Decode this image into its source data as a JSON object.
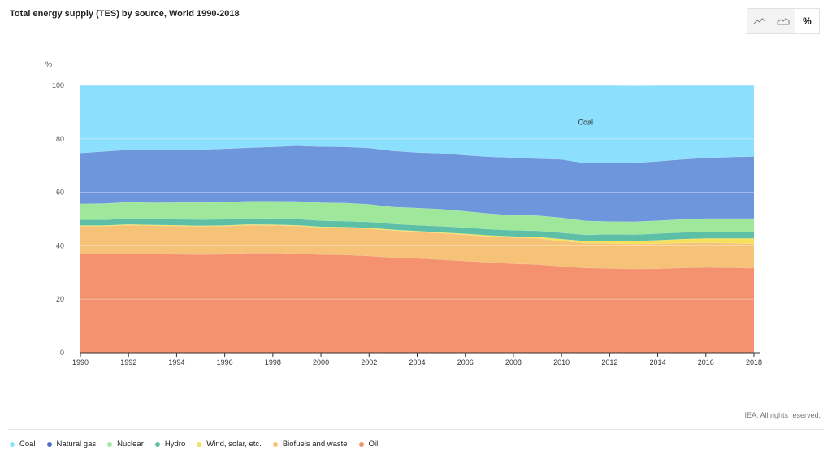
{
  "chart_data": {
    "type": "area",
    "title": "Total energy supply (TES) by source, World 1990-2018",
    "ylabel": "%",
    "xlabel": "",
    "ylim": [
      0,
      100
    ],
    "yticks": [
      0,
      20,
      40,
      60,
      80,
      100
    ],
    "xticks": [
      1990,
      1992,
      1994,
      1996,
      1998,
      2000,
      2002,
      2004,
      2006,
      2008,
      2010,
      2012,
      2014,
      2016,
      2018
    ],
    "x": [
      1990,
      1991,
      1992,
      1993,
      1994,
      1995,
      1996,
      1997,
      1998,
      1999,
      2000,
      2001,
      2002,
      2003,
      2004,
      2005,
      2006,
      2007,
      2008,
      2009,
      2010,
      2011,
      2012,
      2013,
      2014,
      2015,
      2016,
      2017,
      2018
    ],
    "series": [
      {
        "name": "Oil",
        "color": "#f4916f",
        "values": [
          37.0,
          36.9,
          37.1,
          36.9,
          36.8,
          36.7,
          36.8,
          37.3,
          37.3,
          37.1,
          36.7,
          36.6,
          36.2,
          35.6,
          35.3,
          34.8,
          34.3,
          33.8,
          33.3,
          33.0,
          32.3,
          31.7,
          31.5,
          31.3,
          31.4,
          31.7,
          31.9,
          31.8,
          31.6
        ]
      },
      {
        "name": "Biofuels and waste",
        "color": "#f6c278",
        "values": [
          10.3,
          10.4,
          10.6,
          10.6,
          10.6,
          10.5,
          10.5,
          10.4,
          10.3,
          10.3,
          10.1,
          10.1,
          10.2,
          10.1,
          9.9,
          9.9,
          9.8,
          9.7,
          9.8,
          9.8,
          9.5,
          9.3,
          9.4,
          9.4,
          9.4,
          9.4,
          9.3,
          9.2,
          9.2
        ]
      },
      {
        "name": "Wind, solar, etc.",
        "color": "#f5e15c",
        "values": [
          0.3,
          0.3,
          0.3,
          0.3,
          0.3,
          0.3,
          0.3,
          0.3,
          0.3,
          0.3,
          0.3,
          0.3,
          0.3,
          0.3,
          0.3,
          0.3,
          0.4,
          0.4,
          0.4,
          0.5,
          0.7,
          0.8,
          1.0,
          1.1,
          1.3,
          1.4,
          1.6,
          1.8,
          2.0
        ]
      },
      {
        "name": "Hydro",
        "color": "#5ebfa7",
        "values": [
          2.1,
          2.1,
          2.2,
          2.2,
          2.2,
          2.3,
          2.3,
          2.3,
          2.3,
          2.3,
          2.3,
          2.2,
          2.2,
          2.2,
          2.2,
          2.3,
          2.3,
          2.3,
          2.3,
          2.3,
          2.4,
          2.3,
          2.4,
          2.4,
          2.5,
          2.5,
          2.5,
          2.5,
          2.5
        ]
      },
      {
        "name": "Nuclear",
        "color": "#9fe89b",
        "values": [
          6.0,
          6.1,
          6.1,
          6.1,
          6.3,
          6.4,
          6.4,
          6.4,
          6.5,
          6.6,
          6.7,
          6.8,
          6.6,
          6.3,
          6.4,
          6.4,
          6.1,
          5.8,
          5.6,
          5.7,
          5.6,
          5.2,
          4.8,
          4.8,
          4.8,
          4.9,
          4.9,
          4.9,
          4.9
        ]
      },
      {
        "name": "Natural gas",
        "color": "#6e96dc",
        "values": [
          19.0,
          19.5,
          19.6,
          19.7,
          19.6,
          19.8,
          20.0,
          20.0,
          20.3,
          20.8,
          21.0,
          21.0,
          21.1,
          21.0,
          20.8,
          20.9,
          21.0,
          21.3,
          21.6,
          21.3,
          21.8,
          21.6,
          21.9,
          22.0,
          22.2,
          22.4,
          22.7,
          23.0,
          23.2
        ]
      },
      {
        "name": "Coal",
        "color": "#8ce0fd",
        "values": [
          25.3,
          24.7,
          24.1,
          24.2,
          24.2,
          24.0,
          23.7,
          23.3,
          23.0,
          22.6,
          22.9,
          23.0,
          23.4,
          24.5,
          25.1,
          25.4,
          26.1,
          26.7,
          27.0,
          27.4,
          27.7,
          29.1,
          29.0,
          28.9,
          28.4,
          27.7,
          27.1,
          26.8,
          26.6
        ]
      }
    ],
    "annotations": [
      {
        "text": "Coal",
        "x": 2011,
        "y": 85.3
      }
    ],
    "legend_position": "bottom"
  },
  "toggle": {
    "line_icon": "line-chart-icon",
    "area_icon": "area-chart-icon",
    "percent_label": "%"
  },
  "footer": {
    "credit": "IEA. All rights reserved."
  },
  "legend": [
    {
      "label": "Coal",
      "color": "#8ce0fd"
    },
    {
      "label": "Natural gas",
      "color": "#4a72c8"
    },
    {
      "label": "Nuclear",
      "color": "#9fe89b"
    },
    {
      "label": "Hydro",
      "color": "#5ebfa7"
    },
    {
      "label": "Wind, solar, etc.",
      "color": "#f5e15c"
    },
    {
      "label": "Biofuels and waste",
      "color": "#f6c278"
    },
    {
      "label": "Oil",
      "color": "#f4916f"
    }
  ]
}
